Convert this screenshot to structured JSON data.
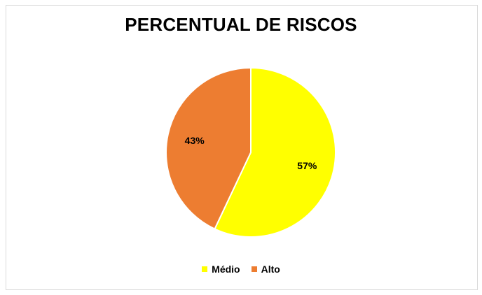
{
  "chart_data": {
    "type": "pie",
    "title": "PERCENTUAL DE RISCOS",
    "categories": [
      "Médio",
      "Alto"
    ],
    "values": [
      57,
      43
    ],
    "data_labels": [
      "57%",
      "43%"
    ],
    "colors": [
      "#ffff00",
      "#ed7d31"
    ],
    "legend_position": "bottom"
  }
}
